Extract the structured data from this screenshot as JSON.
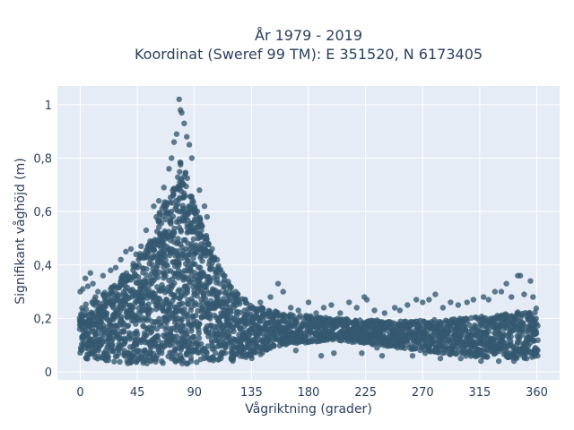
{
  "chart_data": {
    "type": "scatter",
    "title_lines": [
      "År 1979 - 2019",
      "Koordinat (Sweref 99 TM): E 351520, N 6173405"
    ],
    "xlabel": "Vågriktning (grader)",
    "ylabel": "Signifikant våghöjd (m)",
    "xlim": [
      -18,
      378
    ],
    "ylim": [
      -0.03,
      1.07
    ],
    "x_ticks": [
      0,
      45,
      90,
      135,
      180,
      225,
      270,
      315,
      360
    ],
    "x_tick_labels": [
      "0",
      "45",
      "90",
      "135",
      "180",
      "225",
      "270",
      "315",
      "360"
    ],
    "y_ticks": [
      0,
      0.2,
      0.4,
      0.6,
      0.8,
      1
    ],
    "y_tick_labels": [
      "0",
      "0,2",
      "0,4",
      "0,6",
      "0,8",
      "1"
    ],
    "grid": true,
    "marker_color": "#34586f",
    "background_color": "#e5ecf6",
    "envelope": {
      "direction": [
        0,
        20,
        40,
        55,
        65,
        75,
        80,
        90,
        105,
        120,
        135,
        160,
        200,
        250,
        300,
        340,
        360
      ],
      "height_upper": [
        0.24,
        0.3,
        0.4,
        0.5,
        0.62,
        0.72,
        0.8,
        0.64,
        0.44,
        0.32,
        0.25,
        0.22,
        0.2,
        0.19,
        0.2,
        0.22,
        0.24
      ],
      "height_lower": [
        0.05,
        0.04,
        0.03,
        0.03,
        0.03,
        0.03,
        0.03,
        0.03,
        0.04,
        0.04,
        0.05,
        0.1,
        0.12,
        0.09,
        0.06,
        0.05,
        0.05
      ]
    },
    "points": [
      [
        78,
        1.02
      ],
      [
        79,
        0.98
      ],
      [
        80,
        0.97
      ],
      [
        82,
        0.93
      ],
      [
        76,
        0.89
      ],
      [
        74,
        0.86
      ],
      [
        84,
        0.88
      ],
      [
        72,
        0.8
      ],
      [
        86,
        0.85
      ],
      [
        70,
        0.76
      ],
      [
        88,
        0.8
      ],
      [
        66,
        0.69
      ],
      [
        62,
        0.64
      ],
      [
        58,
        0.62
      ],
      [
        60,
        0.58
      ],
      [
        52,
        0.53
      ],
      [
        48,
        0.47
      ],
      [
        44,
        0.44
      ],
      [
        94,
        0.68
      ],
      [
        98,
        0.62
      ],
      [
        100,
        0.58
      ],
      [
        104,
        0.46
      ],
      [
        108,
        0.42
      ],
      [
        112,
        0.37
      ],
      [
        118,
        0.32
      ],
      [
        124,
        0.29
      ],
      [
        130,
        0.27
      ],
      [
        136,
        0.24
      ],
      [
        142,
        0.26
      ],
      [
        150,
        0.28
      ],
      [
        156,
        0.33
      ],
      [
        160,
        0.3
      ],
      [
        166,
        0.24
      ],
      [
        172,
        0.23
      ],
      [
        180,
        0.26
      ],
      [
        186,
        0.22
      ],
      [
        192,
        0.24
      ],
      [
        198,
        0.25
      ],
      [
        205,
        0.22
      ],
      [
        212,
        0.26
      ],
      [
        218,
        0.24
      ],
      [
        224,
        0.28
      ],
      [
        226,
        0.27
      ],
      [
        232,
        0.23
      ],
      [
        240,
        0.22
      ],
      [
        248,
        0.24
      ],
      [
        252,
        0.23
      ],
      [
        258,
        0.25
      ],
      [
        265,
        0.27
      ],
      [
        270,
        0.26
      ],
      [
        275,
        0.27
      ],
      [
        280,
        0.29
      ],
      [
        286,
        0.24
      ],
      [
        292,
        0.26
      ],
      [
        298,
        0.25
      ],
      [
        305,
        0.26
      ],
      [
        310,
        0.27
      ],
      [
        318,
        0.28
      ],
      [
        322,
        0.27
      ],
      [
        327,
        0.3
      ],
      [
        332,
        0.3
      ],
      [
        336,
        0.33
      ],
      [
        340,
        0.28
      ],
      [
        345,
        0.36
      ],
      [
        347,
        0.36
      ],
      [
        350,
        0.29
      ],
      [
        355,
        0.34
      ],
      [
        357,
        0.28
      ],
      [
        8,
        0.37
      ],
      [
        4,
        0.35
      ],
      [
        2,
        0.31
      ],
      [
        10,
        0.33
      ],
      [
        14,
        0.3
      ],
      [
        18,
        0.36
      ],
      [
        24,
        0.38
      ],
      [
        28,
        0.39
      ],
      [
        32,
        0.42
      ],
      [
        36,
        0.45
      ],
      [
        40,
        0.46
      ],
      [
        0,
        0.3
      ],
      [
        6,
        0.32
      ],
      [
        12,
        0.28
      ],
      [
        146,
        0.11
      ],
      [
        150,
        0.09
      ],
      [
        170,
        0.08
      ],
      [
        190,
        0.06
      ],
      [
        200,
        0.07
      ],
      [
        222,
        0.07
      ],
      [
        234,
        0.09
      ],
      [
        238,
        0.06
      ],
      [
        262,
        0.06
      ],
      [
        272,
        0.07
      ],
      [
        284,
        0.05
      ],
      [
        300,
        0.05
      ],
      [
        316,
        0.04
      ],
      [
        330,
        0.04
      ],
      [
        342,
        0.04
      ],
      [
        352,
        0.05
      ]
    ]
  }
}
